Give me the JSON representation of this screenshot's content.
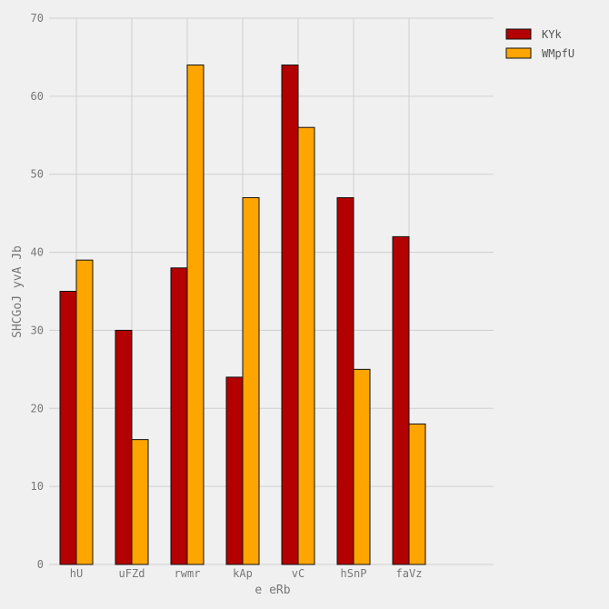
{
  "chart_data": {
    "type": "bar",
    "title": "",
    "xlabel": "e eRb",
    "ylabel": "SHCGoJ yvA Jb",
    "categories": [
      "hU",
      "uFZd",
      "rwmr",
      "kAp",
      "vC",
      "hSnP",
      "faVz"
    ],
    "series": [
      {
        "name": "KYk",
        "color": "#b30000",
        "values": [
          35,
          30,
          38,
          24,
          64,
          47,
          42
        ]
      },
      {
        "name": "WMpfU",
        "color": "#ffa500",
        "values": [
          39,
          16,
          64,
          47,
          56,
          25,
          18
        ]
      }
    ],
    "ylim": [
      0,
      70
    ],
    "yticks": [
      0,
      10,
      20,
      30,
      40,
      50,
      60,
      70
    ],
    "grid": true,
    "legend_position": "top-right"
  }
}
